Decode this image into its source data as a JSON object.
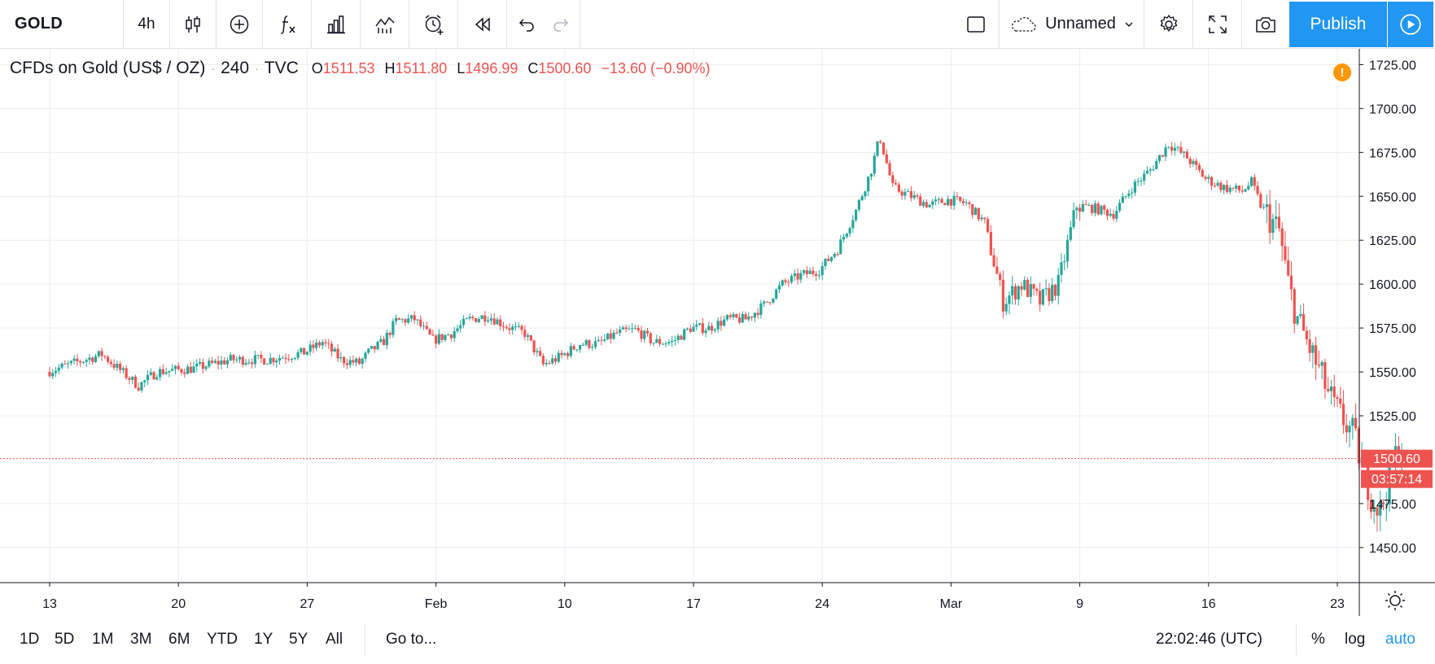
{
  "toolbar": {
    "symbol": "GOLD",
    "interval": "4h",
    "layout_name": "Unnamed",
    "publish_label": "Publish",
    "icons": [
      "candles-icon",
      "add-compare-icon",
      "indicators-icon",
      "financials-icon",
      "templates-icon",
      "alert-icon",
      "replay-icon",
      "undo-icon",
      "redo-icon",
      "fullscreen-toggle-icon",
      "cloud-icon",
      "chevron-down-icon",
      "gear-icon",
      "fullscreen-icon",
      "camera-icon",
      "play-icon"
    ]
  },
  "legend": {
    "title": "CFDs on Gold (US$ / OZ)",
    "interval": "240",
    "exchange": "TVC",
    "open_key": "O",
    "open": "1511.53",
    "high_key": "H",
    "high": "1511.80",
    "low_key": "L",
    "low": "1496.99",
    "close_key": "C",
    "close": "1500.60",
    "change": "−13.60 (−0.90%)"
  },
  "chart_data": {
    "type": "candlestick",
    "y_axis_ticks": [
      "1725.00",
      "1700.00",
      "1675.00",
      "1650.00",
      "1625.00",
      "1600.00",
      "1575.00",
      "1550.00",
      "1525.00",
      "1475.00",
      "1450.00"
    ],
    "y_range": [
      1430,
      1734
    ],
    "x_axis_ticks": [
      "13",
      "20",
      "27",
      "Feb",
      "10",
      "17",
      "24",
      "Mar",
      "9",
      "16",
      "23"
    ],
    "last_price": "1500.60",
    "countdown": "03:57:14",
    "price_path": [
      [
        0,
        1550
      ],
      [
        3,
        1560
      ],
      [
        5,
        1542
      ],
      [
        6,
        1550
      ],
      [
        8,
        1552
      ],
      [
        10,
        1557
      ],
      [
        12,
        1557
      ],
      [
        14,
        1561
      ],
      [
        15,
        1567
      ],
      [
        16,
        1557
      ],
      [
        17,
        1555
      ],
      [
        17.5,
        1561
      ],
      [
        18.3,
        1567
      ],
      [
        19,
        1579
      ],
      [
        20,
        1580
      ],
      [
        21,
        1568
      ],
      [
        22,
        1572
      ],
      [
        23,
        1580
      ],
      [
        24,
        1582
      ],
      [
        25,
        1576
      ],
      [
        26,
        1572
      ],
      [
        27,
        1554
      ],
      [
        28,
        1559
      ],
      [
        29,
        1566
      ],
      [
        30,
        1566
      ],
      [
        31,
        1572
      ],
      [
        32,
        1574
      ],
      [
        33,
        1567
      ],
      [
        34,
        1567
      ],
      [
        35,
        1575
      ],
      [
        36,
        1575
      ],
      [
        37,
        1580
      ],
      [
        38,
        1580
      ],
      [
        39,
        1588
      ],
      [
        40,
        1600
      ],
      [
        41,
        1605
      ],
      [
        42,
        1608
      ],
      [
        43,
        1620
      ],
      [
        44,
        1642
      ],
      [
        44.8,
        1664
      ],
      [
        45.3,
        1684
      ],
      [
        46,
        1655
      ],
      [
        47,
        1650
      ],
      [
        48,
        1645
      ],
      [
        49,
        1648
      ],
      [
        50,
        1646
      ],
      [
        51,
        1635
      ],
      [
        52,
        1590
      ],
      [
        53,
        1600
      ],
      [
        54,
        1590
      ],
      [
        55,
        1600
      ],
      [
        56,
        1645
      ],
      [
        57,
        1643
      ],
      [
        58,
        1640
      ],
      [
        59,
        1655
      ],
      [
        60,
        1665
      ],
      [
        61,
        1680
      ],
      [
        62,
        1672
      ],
      [
        63,
        1660
      ],
      [
        64,
        1655
      ],
      [
        65,
        1653
      ],
      [
        65.5,
        1658
      ],
      [
        66,
        1645
      ],
      [
        67,
        1630
      ],
      [
        67.5,
        1600
      ],
      [
        68,
        1580
      ],
      [
        69,
        1555
      ],
      [
        70,
        1530
      ],
      [
        71,
        1515
      ],
      [
        72,
        1480
      ],
      [
        72.5,
        1470
      ],
      [
        73,
        1490
      ],
      [
        73.5,
        1508
      ]
    ]
  },
  "footer": {
    "ranges": [
      "1D",
      "5D",
      "1M",
      "3M",
      "6M",
      "YTD",
      "1Y",
      "5Y",
      "All"
    ],
    "goto": "Go to...",
    "time": "22:02:46 (UTC)",
    "percent": "%",
    "log": "log",
    "auto": "auto"
  },
  "colors": {
    "up": "#26a69a",
    "down": "#ef5350",
    "accent": "#2196f3",
    "grid": "#e9edf3",
    "warning": "#ff9800"
  }
}
